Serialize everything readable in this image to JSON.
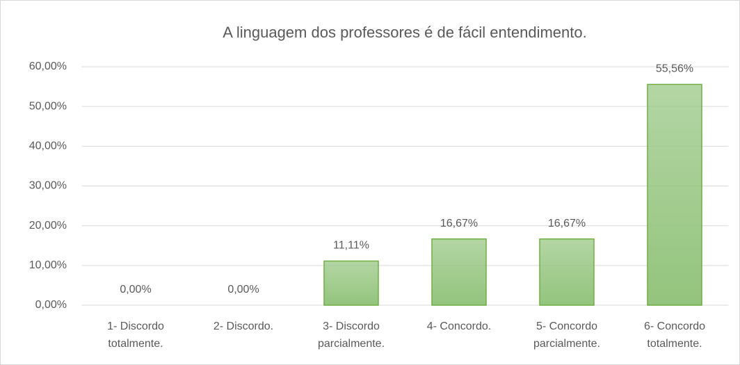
{
  "chart_data": {
    "type": "bar",
    "title": "A linguagem dos professores é de fácil entendimento.",
    "categories": [
      "1- Discordo totalmente.",
      "2- Discordo.",
      "3- Discordo parcialmente.",
      "4- Concordo.",
      "5- Concordo parcialmente.",
      "6- Concordo totalmente."
    ],
    "values": [
      0,
      0,
      11.11,
      16.67,
      16.67,
      55.56
    ],
    "value_labels": [
      "0,00%",
      "0,00%",
      "11,11%",
      "16,67%",
      "16,67%",
      "55,56%"
    ],
    "color": "#93c47d",
    "edge_color": "#70ad47",
    "ylim": [
      0,
      60
    ],
    "yticks": [
      {
        "value": 0,
        "label": "0,00%"
      },
      {
        "value": 10,
        "label": "10,00%"
      },
      {
        "value": 20,
        "label": "20,00%"
      },
      {
        "value": 30,
        "label": "30,00%"
      },
      {
        "value": 40,
        "label": "40,00%"
      },
      {
        "value": 50,
        "label": "50,00%"
      },
      {
        "value": 60,
        "label": "60,00%"
      }
    ],
    "grid": true
  }
}
